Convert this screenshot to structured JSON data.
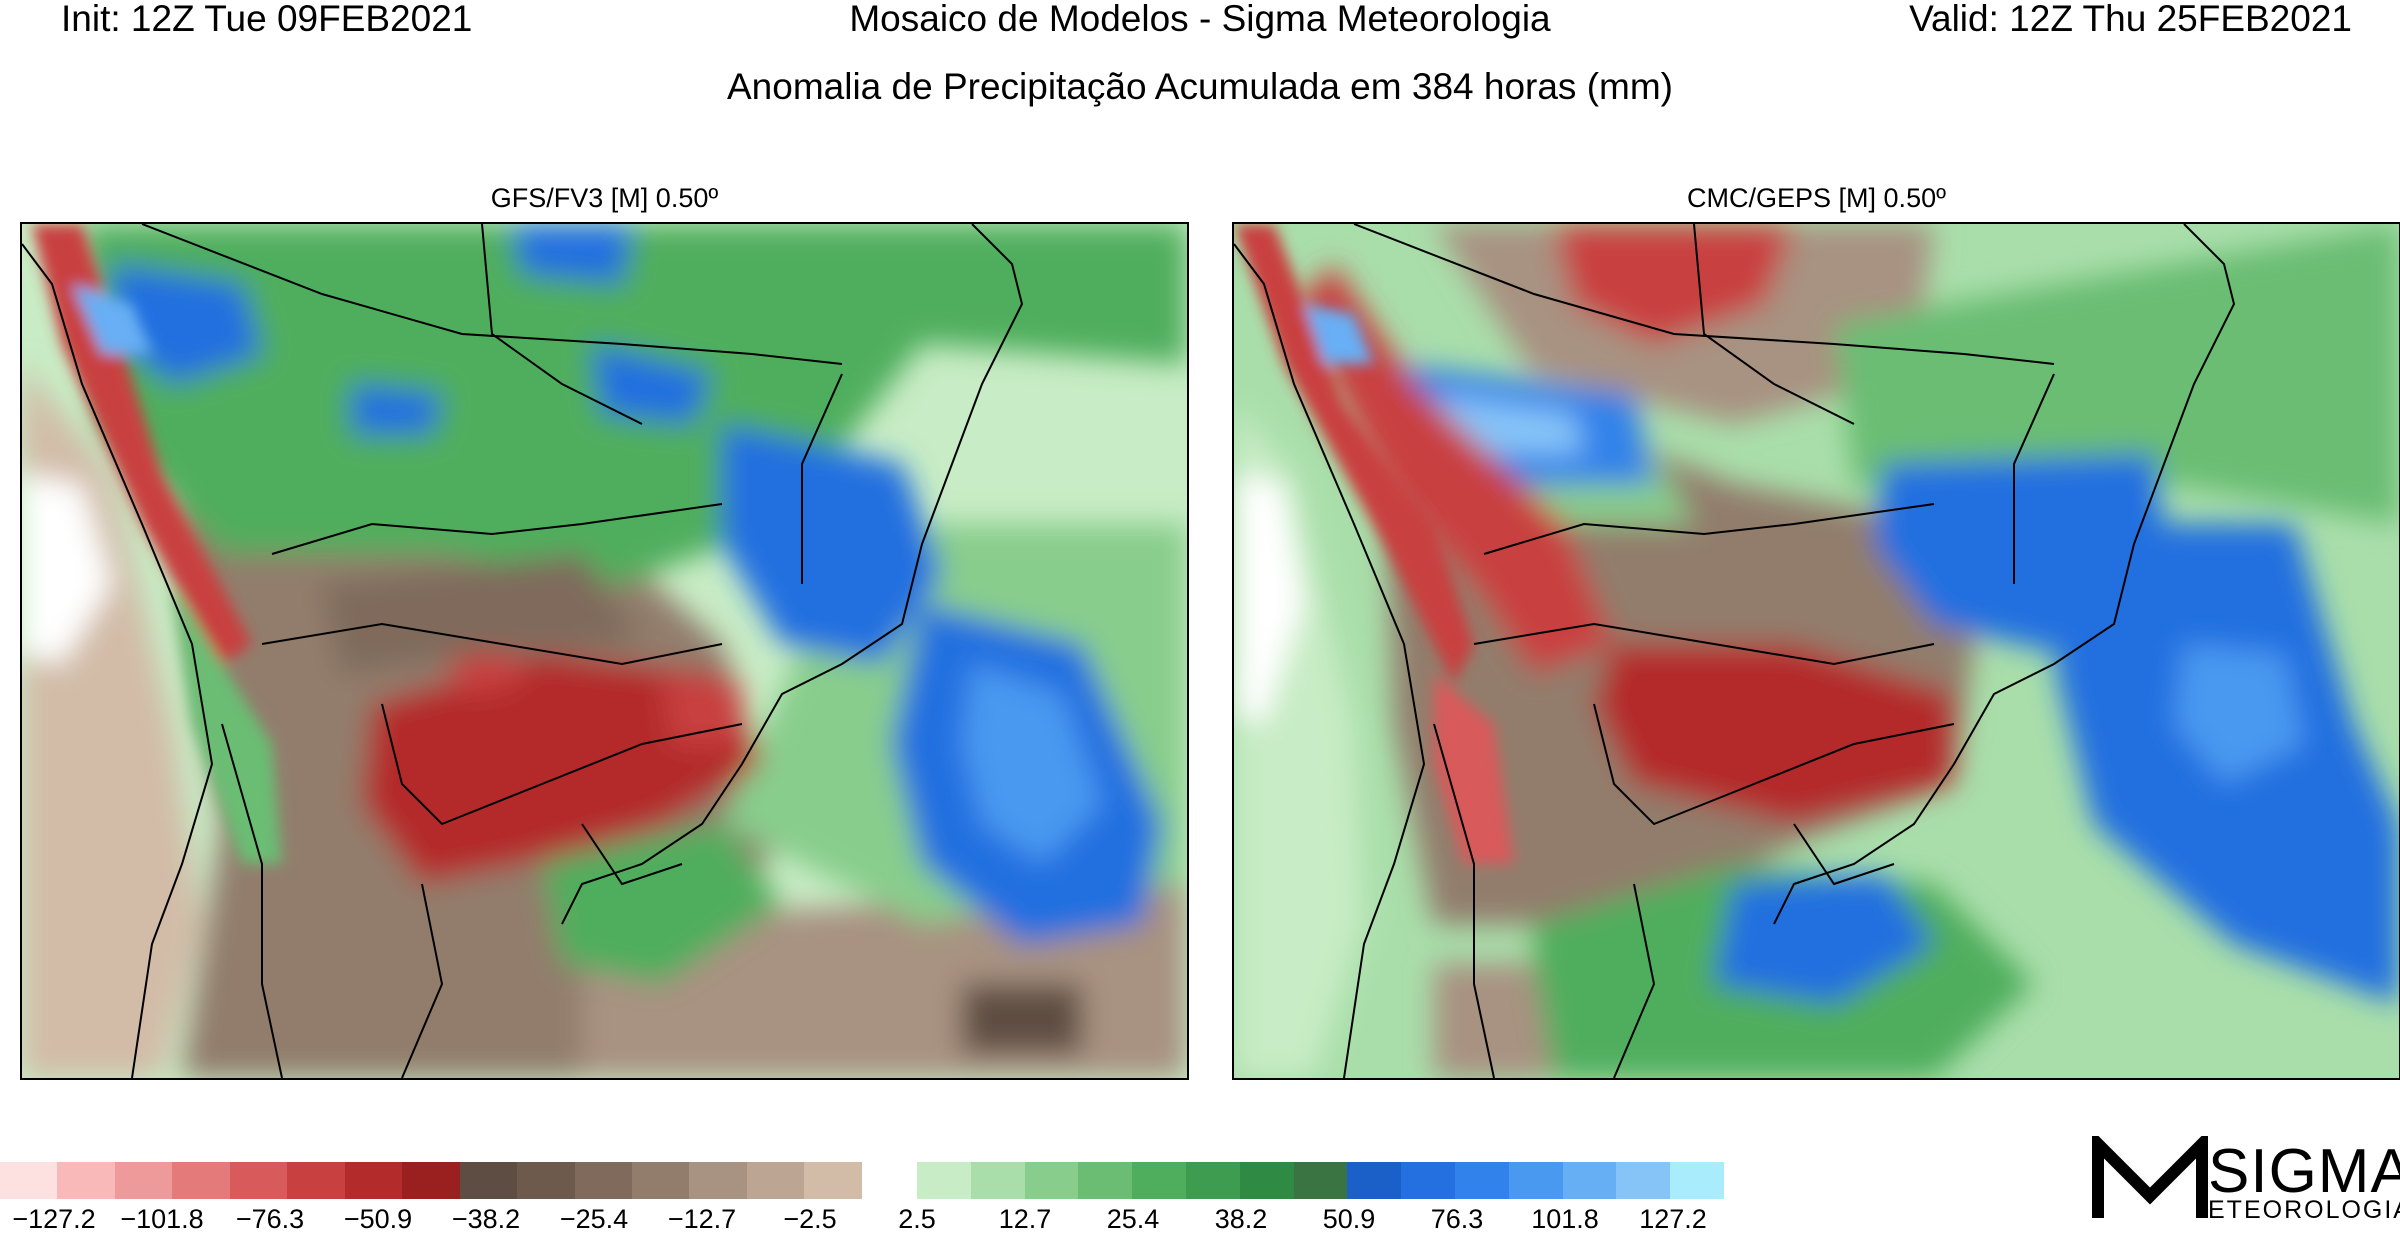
{
  "header": {
    "init": "Init: 12Z Tue 09FEB2021",
    "center": "Mosaico de Modelos - Sigma Meteorologia",
    "valid": "Valid: 12Z Thu 25FEB2021",
    "subtitle": "Anomalia de Precipitação Acumulada em 384 horas (mm)"
  },
  "panels": [
    {
      "title": "GFS/FV3 [M] 0.50º"
    },
    {
      "title": "CMC/GEPS [M] 0.50º"
    }
  ],
  "colorbar": {
    "negative_colors": [
      "#fde0e0",
      "#f9b9b9",
      "#ef9a9a",
      "#e57a7a",
      "#d85a5a",
      "#c94040",
      "#b42b2b",
      "#9a1f1f",
      "#5e4d42",
      "#6e5a4c",
      "#7f6a5b",
      "#927d6c",
      "#a89281",
      "#bca693",
      "#d2bca8"
    ],
    "positive_colors": [
      "#c8ecc5",
      "#a9deaa",
      "#88cd8c",
      "#6bbd73",
      "#4fae5d",
      "#3d9c4f",
      "#2f8a44",
      "#3a7443",
      "#1b5fc9",
      "#2470e0",
      "#3182ea",
      "#4a99f0",
      "#67aff5",
      "#86c4f8",
      "#a9ecfb"
    ],
    "negative_labels": [
      "−127.2",
      "−101.8",
      "−76.3",
      "−50.9",
      "−38.2",
      "−25.4",
      "−12.7",
      "−2.5"
    ],
    "positive_labels": [
      "2.5",
      "12.7",
      "25.4",
      "38.2",
      "50.9",
      "76.3",
      "101.8",
      "127.2"
    ]
  },
  "map_fields": {
    "gfs": [
      {
        "name": "south-atlantic-wet",
        "value": 101.8
      },
      {
        "name": "southeast-brazil-wet",
        "value": 76.3
      },
      {
        "name": "paraguay-dry",
        "value": -50.9
      },
      {
        "name": "central-brazil-wet",
        "value": 50.9
      },
      {
        "name": "andes-dry",
        "value": -50.9
      }
    ],
    "cmc": [
      {
        "name": "atlantic-wet",
        "value": 101.8
      },
      {
        "name": "bahia-wet",
        "value": 76.3
      },
      {
        "name": "parana-dry",
        "value": -50.9
      },
      {
        "name": "peru-bolivia-dry",
        "value": -50.9
      },
      {
        "name": "north-dry",
        "value": -50.9
      }
    ]
  },
  "logo": {
    "word": "SIGMA",
    "sub": "ETEOROLOGIA"
  }
}
